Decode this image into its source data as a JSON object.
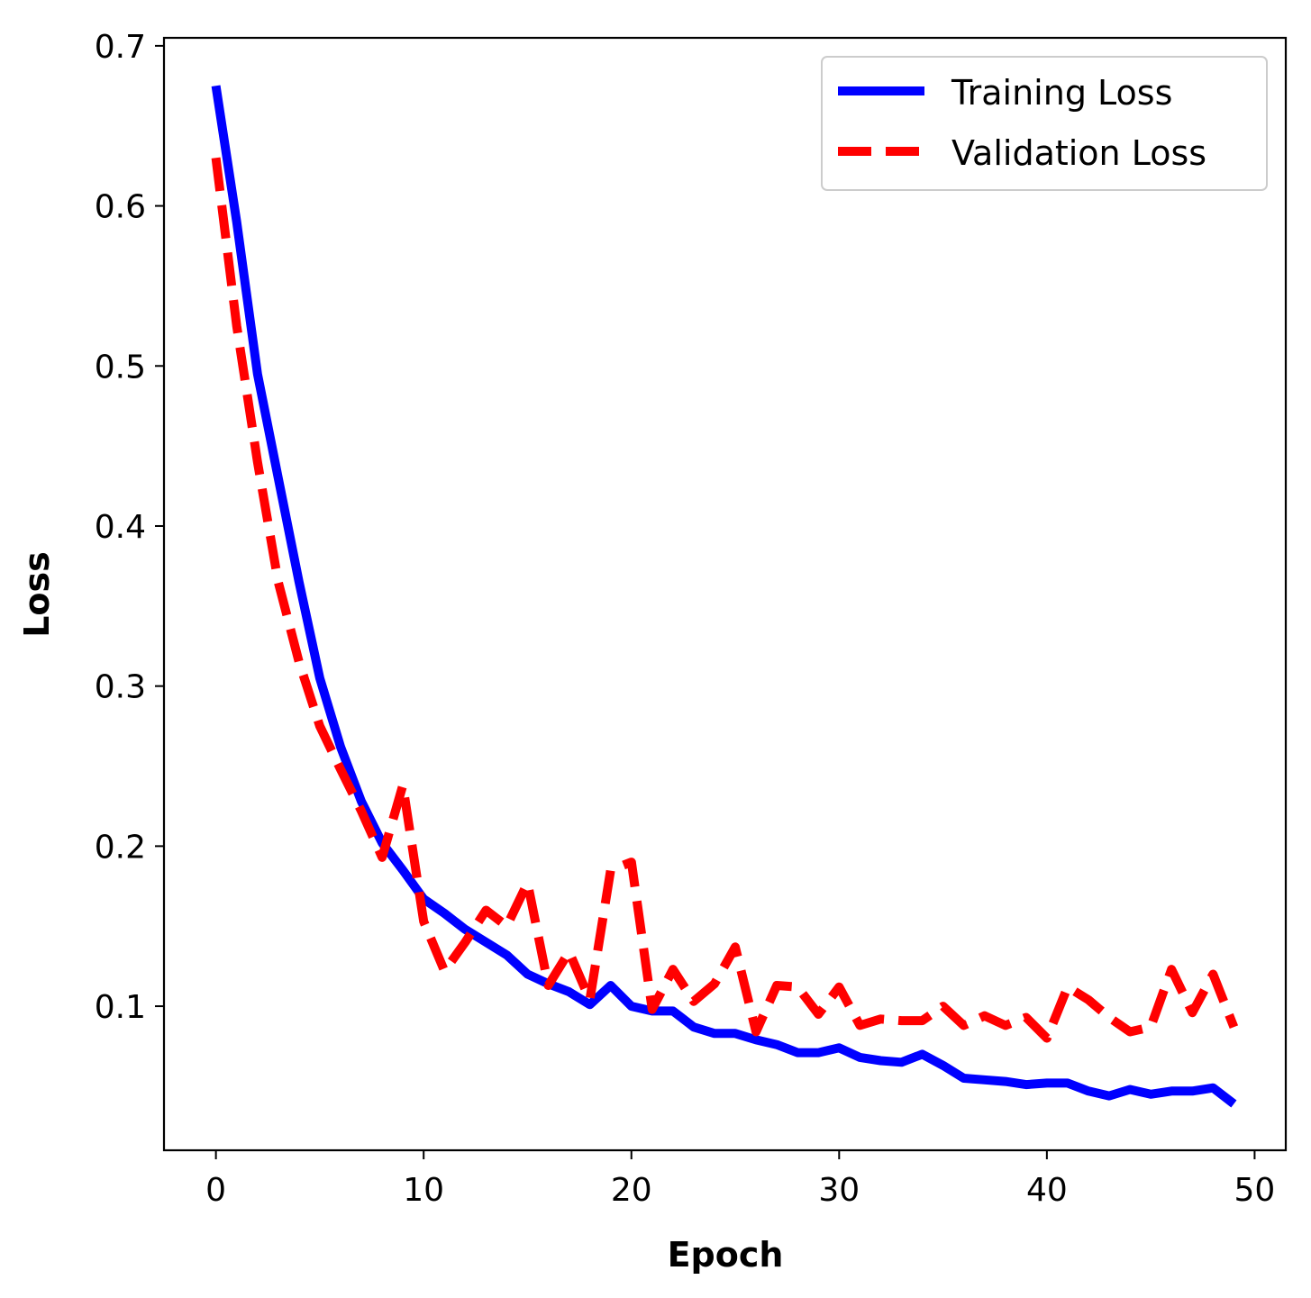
{
  "chart_data": {
    "type": "line",
    "title": "",
    "xlabel": "Epoch",
    "ylabel": "Loss",
    "xlim": [
      -2.5,
      51.5
    ],
    "ylim": [
      0.01,
      0.705
    ],
    "xticks": [
      0,
      10,
      20,
      30,
      40,
      50
    ],
    "yticks": [
      0.1,
      0.2,
      0.3,
      0.4,
      0.5,
      0.6,
      0.7
    ],
    "xtick_labels": [
      "0",
      "10",
      "20",
      "30",
      "40",
      "50"
    ],
    "ytick_labels": [
      "0.1",
      "0.2",
      "0.3",
      "0.4",
      "0.5",
      "0.6",
      "0.7"
    ],
    "grid": false,
    "legend_position": "top-right",
    "x": [
      0,
      1,
      2,
      3,
      4,
      5,
      6,
      7,
      8,
      9,
      10,
      11,
      12,
      13,
      14,
      15,
      16,
      17,
      18,
      19,
      20,
      21,
      22,
      23,
      24,
      25,
      26,
      27,
      28,
      29,
      30,
      31,
      32,
      33,
      34,
      35,
      36,
      37,
      38,
      39,
      40,
      41,
      42,
      43,
      44,
      45,
      46,
      47,
      48,
      49
    ],
    "series": [
      {
        "name": "Training Loss",
        "color": "#0000ff",
        "style": "solid",
        "values": [
          0.675,
          0.59,
          0.495,
          0.43,
          0.365,
          0.305,
          0.262,
          0.228,
          0.202,
          0.185,
          0.167,
          0.158,
          0.148,
          0.14,
          0.132,
          0.12,
          0.114,
          0.109,
          0.101,
          0.113,
          0.1,
          0.097,
          0.097,
          0.087,
          0.083,
          0.083,
          0.079,
          0.076,
          0.071,
          0.071,
          0.074,
          0.068,
          0.066,
          0.065,
          0.07,
          0.063,
          0.055,
          0.054,
          0.053,
          0.051,
          0.052,
          0.052,
          0.047,
          0.044,
          0.048,
          0.045,
          0.047,
          0.047,
          0.049,
          0.039
        ]
      },
      {
        "name": "Validation Loss",
        "color": "#ff0000",
        "style": "dashed",
        "values": [
          0.63,
          0.525,
          0.44,
          0.365,
          0.315,
          0.275,
          0.248,
          0.222,
          0.193,
          0.238,
          0.153,
          0.122,
          0.14,
          0.16,
          0.15,
          0.177,
          0.113,
          0.134,
          0.104,
          0.185,
          0.19,
          0.098,
          0.123,
          0.103,
          0.114,
          0.137,
          0.084,
          0.113,
          0.112,
          0.095,
          0.112,
          0.088,
          0.092,
          0.091,
          0.091,
          0.1,
          0.088,
          0.094,
          0.088,
          0.093,
          0.08,
          0.112,
          0.104,
          0.093,
          0.084,
          0.087,
          0.123,
          0.096,
          0.12,
          0.087
        ]
      }
    ]
  }
}
